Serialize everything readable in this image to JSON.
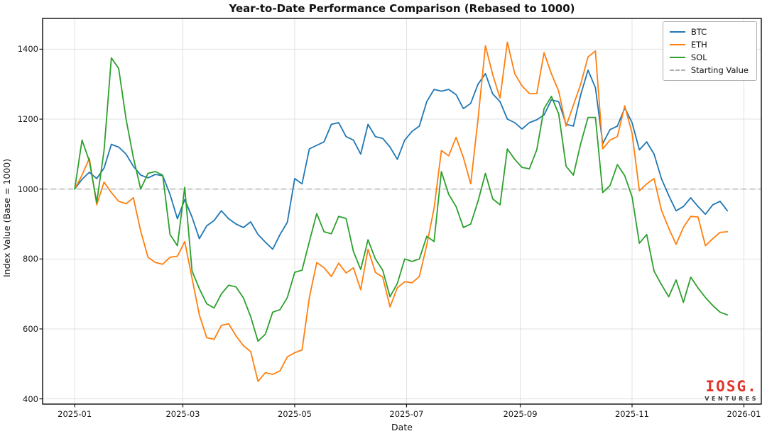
{
  "figure": {
    "title": "Year-to-Date Performance Comparison (Rebased to 1000)",
    "xlabel": "Date",
    "ylabel": "Index Value (Base = 1000)"
  },
  "logo": {
    "line1": "IOSG.",
    "line2": "VENTURES"
  },
  "chart_data": {
    "type": "line",
    "title": "Year-to-Date Performance Comparison (Rebased to 1000)",
    "xlabel": "Date",
    "ylabel": "Index Value (Base = 1000)",
    "grid": true,
    "legend_position": "upper right",
    "x_start_date": "2025-01-01",
    "x_interval_days": 4,
    "x_tick_labels": [
      "2025-01",
      "2025-03",
      "2025-05",
      "2025-07",
      "2025-09",
      "2025-11",
      "2026-01"
    ],
    "x_tick_days": [
      0,
      59,
      120,
      181,
      243,
      304,
      365
    ],
    "y_ticks": [
      400,
      600,
      800,
      1000,
      1200,
      1400
    ],
    "ylim": [
      385,
      1488
    ],
    "xlim_days": [
      -17.5,
      374.5
    ],
    "baseline": {
      "label": "Starting Value",
      "value": 1000,
      "color": "#b0b0b0",
      "style": "dashed"
    },
    "series": [
      {
        "name": "BTC",
        "color": "#1f77b4",
        "values": [
          1000,
          1028,
          1048,
          1030,
          1060,
          1128,
          1120,
          1100,
          1065,
          1040,
          1032,
          1042,
          1038,
          985,
          915,
          970,
          920,
          858,
          895,
          910,
          938,
          915,
          900,
          890,
          906,
          870,
          848,
          828,
          870,
          905,
          1030,
          1015,
          1115,
          1125,
          1135,
          1185,
          1190,
          1150,
          1140,
          1100,
          1185,
          1150,
          1145,
          1120,
          1085,
          1140,
          1165,
          1180,
          1250,
          1285,
          1280,
          1285,
          1270,
          1230,
          1245,
          1300,
          1330,
          1272,
          1250,
          1200,
          1190,
          1172,
          1190,
          1198,
          1212,
          1255,
          1250,
          1185,
          1180,
          1270,
          1340,
          1290,
          1130,
          1170,
          1180,
          1232,
          1190,
          1112,
          1135,
          1100,
          1030,
          982,
          938,
          950,
          975,
          950,
          928,
          955,
          965,
          938
        ]
      },
      {
        "name": "ETH",
        "color": "#ff7f0e",
        "values": [
          1000,
          1040,
          1088,
          955,
          1020,
          990,
          965,
          958,
          975,
          880,
          805,
          790,
          785,
          805,
          808,
          850,
          745,
          640,
          575,
          570,
          610,
          615,
          580,
          552,
          535,
          450,
          475,
          470,
          480,
          520,
          532,
          540,
          690,
          790,
          775,
          750,
          788,
          760,
          775,
          712,
          828,
          762,
          748,
          663,
          718,
          735,
          732,
          750,
          840,
          945,
          1110,
          1095,
          1148,
          1090,
          1015,
          1200,
          1410,
          1327,
          1260,
          1420,
          1330,
          1295,
          1273,
          1273,
          1390,
          1330,
          1280,
          1180,
          1240,
          1300,
          1378,
          1395,
          1115,
          1140,
          1150,
          1238,
          1160,
          995,
          1015,
          1030,
          940,
          888,
          842,
          890,
          922,
          920,
          838,
          858,
          876,
          878
        ]
      },
      {
        "name": "SOL",
        "color": "#2ca02c",
        "values": [
          1000,
          1140,
          1080,
          962,
          1110,
          1375,
          1345,
          1200,
          1090,
          1000,
          1045,
          1050,
          1040,
          870,
          838,
          1005,
          766,
          715,
          672,
          660,
          700,
          725,
          720,
          689,
          635,
          565,
          585,
          648,
          655,
          690,
          762,
          768,
          850,
          930,
          878,
          872,
          922,
          916,
          822,
          770,
          855,
          800,
          768,
          692,
          730,
          800,
          793,
          800,
          865,
          850,
          1050,
          985,
          950,
          890,
          900,
          965,
          1045,
          972,
          955,
          1115,
          1085,
          1062,
          1058,
          1112,
          1230,
          1265,
          1215,
          1065,
          1040,
          1130,
          1205,
          1205,
          990,
          1010,
          1070,
          1038,
          978,
          845,
          870,
          765,
          727,
          692,
          740,
          676,
          748,
          717,
          690,
          667,
          648,
          640
        ]
      }
    ]
  }
}
